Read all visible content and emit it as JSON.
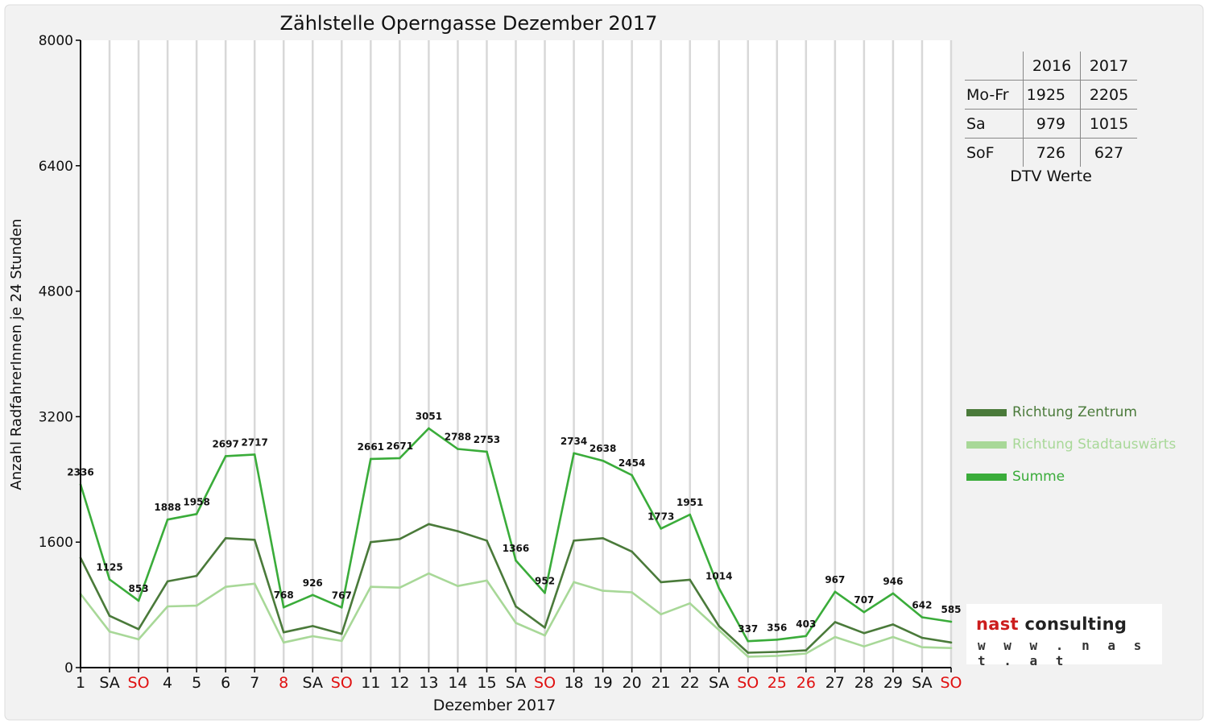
{
  "chart_data": {
    "type": "line",
    "title": "Zählstelle Operngasse Dezember 2017",
    "xlabel": "Dezember 2017",
    "ylabel": "Anzahl RadfahrerInnen je 24 Stunden",
    "ylim": [
      0,
      8000
    ],
    "yticks": [
      "0",
      "1600",
      "3200",
      "4800",
      "6400",
      "8000"
    ],
    "grid": "vertical",
    "legend_position": "right",
    "categories": [
      "1",
      "SA",
      "SO",
      "4",
      "5",
      "6",
      "7",
      "8",
      "SA",
      "SO",
      "11",
      "12",
      "13",
      "14",
      "15",
      "SA",
      "SO",
      "18",
      "19",
      "20",
      "21",
      "22",
      "SA",
      "SO",
      "25",
      "26",
      "27",
      "28",
      "29",
      "SA",
      "SO"
    ],
    "red_categories": [
      2,
      7,
      9,
      16,
      23,
      24,
      25,
      30
    ],
    "series": [
      {
        "name": "Richtung Zentrum",
        "color": "#4a7a3a",
        "values": [
          1400,
          660,
          490,
          1100,
          1170,
          1650,
          1630,
          450,
          530,
          430,
          1600,
          1640,
          1830,
          1740,
          1620,
          780,
          510,
          1620,
          1650,
          1480,
          1090,
          1120,
          530,
          190,
          200,
          220,
          580,
          440,
          550,
          380,
          320
        ]
      },
      {
        "name": "Richtung Stadtauswärts",
        "color": "#a8d898",
        "values": [
          940,
          460,
          360,
          780,
          790,
          1030,
          1070,
          320,
          400,
          340,
          1030,
          1020,
          1200,
          1040,
          1110,
          570,
          410,
          1090,
          980,
          960,
          680,
          820,
          480,
          140,
          150,
          180,
          390,
          270,
          390,
          260,
          250
        ]
      },
      {
        "name": "Summe",
        "color": "#3aac3a",
        "values": [
          2336,
          1125,
          853,
          1888,
          1958,
          2697,
          2717,
          768,
          926,
          767,
          2661,
          2671,
          3051,
          2788,
          2753,
          1366,
          952,
          2734,
          2638,
          2454,
          1773,
          1951,
          1014,
          337,
          356,
          403,
          967,
          707,
          946,
          642,
          585
        ],
        "data_labels": [
          "2336",
          "1125",
          "853",
          "1888",
          "1958",
          "2697",
          "2717",
          "768",
          "926",
          "767",
          "2661",
          "2671",
          "3051",
          "2788",
          "2753",
          "1366",
          "952",
          "2734",
          "2638",
          "2454",
          "1773",
          "1951",
          "1014",
          "337",
          "356",
          "403",
          "967",
          "707",
          "946",
          "642",
          "585"
        ]
      }
    ],
    "dtv_table": {
      "headers": [
        "",
        "2016",
        "2017"
      ],
      "rows": [
        {
          "label": "Mo-Fr",
          "v2016": "1925",
          "v2017": "2205"
        },
        {
          "label": "Sa",
          "v2016": "979",
          "v2017": "1015"
        },
        {
          "label": "SoF",
          "v2016": "726",
          "v2017": "627"
        }
      ],
      "caption": "DTV Werte"
    }
  },
  "logo": {
    "brand_part1": "nast",
    "brand_part2": " consulting",
    "url": "w w w . n a s t . a t"
  }
}
